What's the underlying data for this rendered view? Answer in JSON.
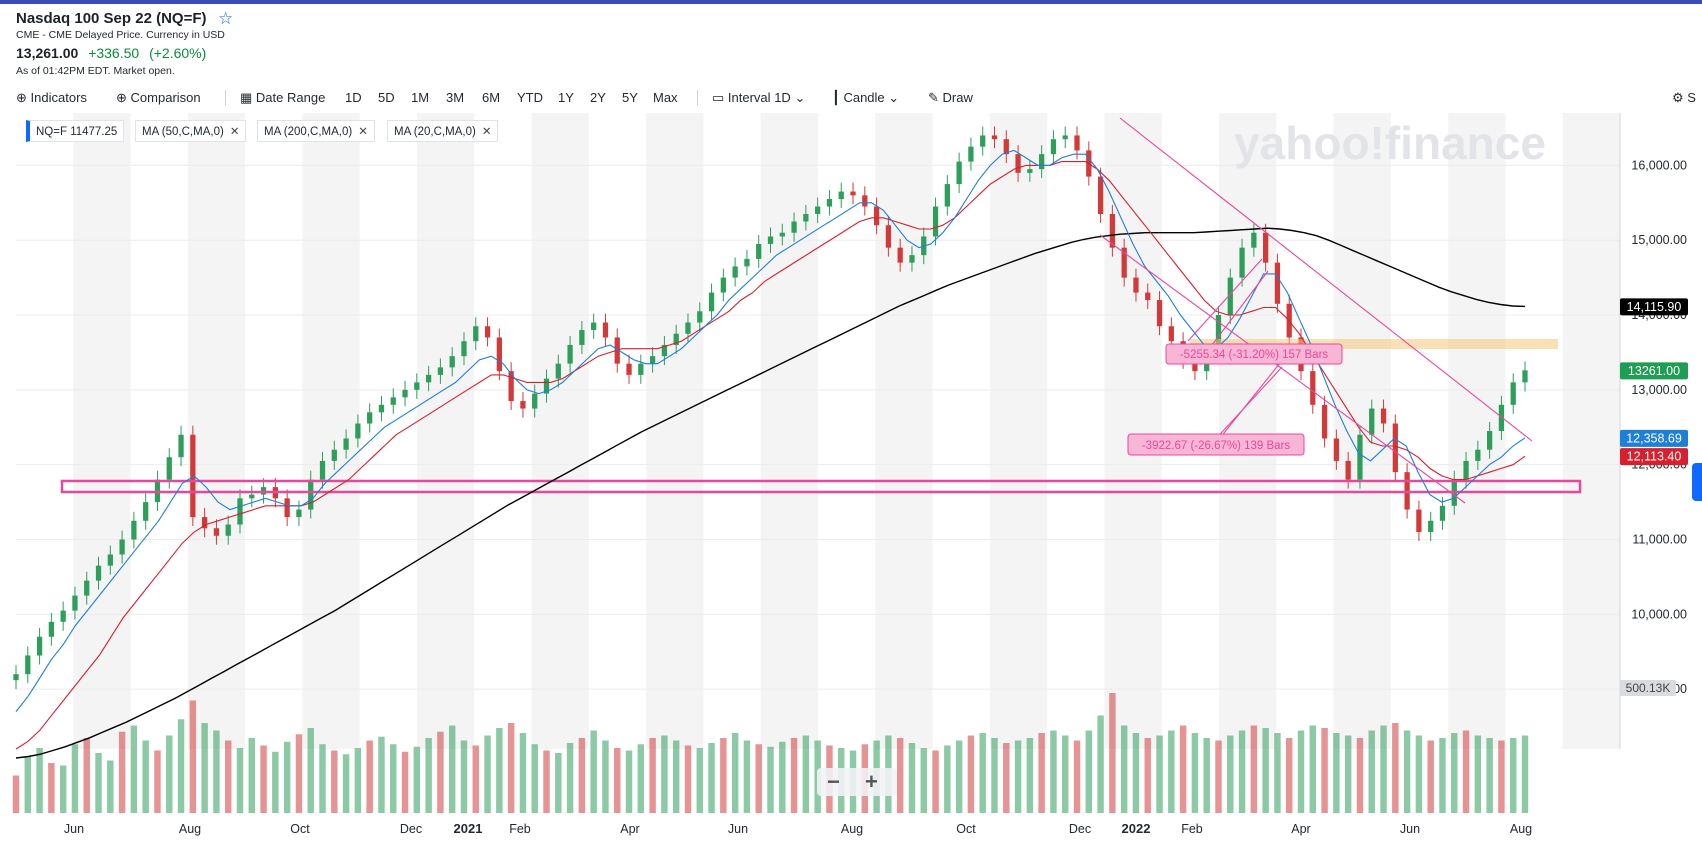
{
  "header": {
    "title": "Nasdaq 100 Sep 22 (NQ=F)",
    "subtitle": "CME - CME Delayed Price. Currency in USD",
    "price": "13,261.00",
    "change": "+336.50",
    "change_pct": "(+2.60%)",
    "as_of": "As of 01:42PM EDT. Market open."
  },
  "toolbar": {
    "indicators": "Indicators",
    "comparison": "Comparison",
    "date_range": "Date Range",
    "ranges": [
      "1D",
      "5D",
      "1M",
      "3M",
      "6M",
      "YTD",
      "1Y",
      "2Y",
      "5Y",
      "Max"
    ],
    "interval_label": "Interval",
    "interval_value": "1D",
    "chart_type": "Candle",
    "draw": "Draw",
    "settings": "S"
  },
  "legend_pills": [
    {
      "label": "NQ=F",
      "value": "11477.25"
    },
    {
      "label": "MA (50,C,MA,0)"
    },
    {
      "label": "MA (200,C,MA,0)"
    },
    {
      "label": "MA (20,C,MA,0)"
    }
  ],
  "watermark": "yahoo!finance",
  "zoom": {
    "minus": "−",
    "plus": "+"
  },
  "chart_data": {
    "type": "line",
    "series": [
      {
        "values": [
          9200,
          9450,
          9700,
          9900,
          10050,
          10250,
          10450,
          10650,
          10800,
          11000,
          11250,
          11500,
          11800,
          12100,
          12400,
          11300,
          11150,
          11050,
          11200,
          11550,
          11600,
          11700,
          11550,
          11300,
          11400,
          11800,
          12050,
          12200,
          12350,
          12550,
          12700,
          12800,
          12900,
          13000,
          13100,
          13200,
          13300,
          13450,
          13650,
          13850,
          13700,
          13250,
          12850,
          12750,
          12950,
          13150,
          13350,
          13600,
          13800,
          13900,
          13700,
          13350,
          13200,
          13350,
          13450,
          13600,
          13750,
          13900,
          14050,
          14300,
          14500,
          14650,
          14750,
          14950,
          15050,
          15100,
          15250,
          15350,
          15450,
          15550,
          15650,
          15600,
          15450,
          15200,
          14900,
          14700,
          14800,
          15050,
          15450,
          15750,
          16050,
          16250,
          16400,
          16350,
          16150,
          15900,
          15950,
          16150,
          16350,
          16400,
          16200,
          15850,
          15350,
          14900,
          14500,
          14300,
          14200,
          13850,
          13650,
          13400,
          13250,
          13500,
          14000,
          14500,
          14900,
          15100,
          14700,
          14150,
          13700,
          13250,
          12800,
          12350,
          12050,
          11800,
          12400,
          12750,
          12550,
          11900,
          11400,
          11100,
          11250,
          11450,
          11800,
          12050,
          12200,
          12450,
          12800,
          13100,
          13261
        ]
      },
      {
        "name": "MA (20,C,MA,0)",
        "values": [
          8700,
          8900,
          9150,
          9400,
          9600,
          9850,
          10050,
          10250,
          10450,
          10650,
          10850,
          11050,
          11250,
          11500,
          11750,
          11850,
          11700,
          11500,
          11400,
          11450,
          11500,
          11550,
          11500,
          11450,
          11450,
          11550,
          11750,
          11900,
          12050,
          12200,
          12350,
          12500,
          12600,
          12700,
          12800,
          12900,
          13000,
          13100,
          13250,
          13400,
          13450,
          13350,
          13150,
          13000,
          12950,
          13000,
          13100,
          13250,
          13400,
          13550,
          13600,
          13500,
          13400,
          13350,
          13350,
          13450,
          13550,
          13700,
          13850,
          14000,
          14200,
          14350,
          14500,
          14650,
          14800,
          14900,
          15000,
          15100,
          15200,
          15300,
          15400,
          15500,
          15500,
          15400,
          15200,
          15000,
          14900,
          14950,
          15100,
          15300,
          15550,
          15800,
          16000,
          16150,
          16200,
          16100,
          16000,
          16000,
          16100,
          16150,
          16150,
          15950,
          15650,
          15300,
          14950,
          14650,
          14450,
          14250,
          14000,
          13800,
          13600,
          13550,
          13700,
          13950,
          14250,
          14550,
          14550,
          14300,
          13950,
          13600,
          13200,
          12800,
          12450,
          12150,
          12050,
          12200,
          12350,
          12250,
          11900,
          11600,
          11500,
          11550,
          11700,
          11850,
          12000,
          12100,
          12250,
          12358.69
        ]
      },
      {
        "name": "MA (50,C,MA,0)",
        "values": [
          8200,
          8300,
          8450,
          8650,
          8850,
          9050,
          9250,
          9450,
          9700,
          9950,
          10150,
          10350,
          10550,
          10750,
          10950,
          11100,
          11200,
          11250,
          11300,
          11350,
          11400,
          11450,
          11450,
          11450,
          11450,
          11500,
          11600,
          11700,
          11800,
          11950,
          12100,
          12250,
          12400,
          12500,
          12600,
          12700,
          12800,
          12900,
          13000,
          13100,
          13200,
          13200,
          13150,
          13100,
          13100,
          13100,
          13150,
          13250,
          13350,
          13450,
          13500,
          13550,
          13550,
          13550,
          13550,
          13600,
          13650,
          13750,
          13850,
          13950,
          14050,
          14200,
          14300,
          14450,
          14550,
          14650,
          14750,
          14850,
          14950,
          15050,
          15150,
          15250,
          15300,
          15300,
          15250,
          15200,
          15150,
          15150,
          15200,
          15300,
          15450,
          15600,
          15750,
          15850,
          15950,
          16000,
          16000,
          16000,
          16050,
          16050,
          16050,
          15950,
          15800,
          15600,
          15400,
          15200,
          15000,
          14800,
          14600,
          14400,
          14200,
          14050,
          14000,
          14000,
          14050,
          14100,
          14100,
          13950,
          13750,
          13500,
          13250,
          13000,
          12750,
          12500,
          12300,
          12250,
          12250,
          12200,
          12100,
          11950,
          11850,
          11800,
          11800,
          11850,
          11900,
          11950,
          12000,
          12113.4
        ]
      },
      {
        "name": "MA (200,C,MA,0)",
        "values": [
          8080,
          8100,
          8130,
          8180,
          8230,
          8290,
          8350,
          8420,
          8490,
          8560,
          8640,
          8720,
          8800,
          8880,
          8970,
          9060,
          9150,
          9240,
          9330,
          9420,
          9510,
          9600,
          9690,
          9780,
          9870,
          9960,
          10050,
          10150,
          10250,
          10350,
          10450,
          10550,
          10650,
          10750,
          10850,
          10950,
          11050,
          11150,
          11250,
          11350,
          11450,
          11540,
          11630,
          11720,
          11810,
          11900,
          11990,
          12080,
          12170,
          12260,
          12350,
          12440,
          12520,
          12600,
          12680,
          12760,
          12840,
          12920,
          13000,
          13080,
          13160,
          13240,
          13320,
          13400,
          13480,
          13560,
          13640,
          13720,
          13800,
          13880,
          13960,
          14040,
          14120,
          14190,
          14260,
          14330,
          14400,
          14460,
          14520,
          14580,
          14640,
          14700,
          14760,
          14820,
          14870,
          14920,
          14970,
          15010,
          15040,
          15060,
          15080,
          15090,
          15100,
          15100,
          15100,
          15100,
          15100,
          15110,
          15120,
          15130,
          15140,
          15150,
          15160,
          15150,
          15130,
          15100,
          15060,
          15000,
          14930,
          14860,
          14790,
          14720,
          14650,
          14580,
          14510,
          14440,
          14370,
          14310,
          14260,
          14210,
          14170,
          14140,
          14120,
          14115.9
        ]
      }
    ],
    "volume_values": [
      30,
      45,
      52,
      40,
      38,
      55,
      60,
      48,
      42,
      65,
      70,
      58,
      50,
      62,
      75,
      90,
      72,
      66,
      58,
      52,
      60,
      54,
      49,
      57,
      63,
      68,
      55,
      50,
      47,
      52,
      58,
      61,
      55,
      49,
      53,
      60,
      65,
      70,
      58,
      54,
      62,
      68,
      72,
      64,
      55,
      50,
      48,
      56,
      60,
      66,
      58,
      52,
      50,
      55,
      60,
      62,
      58,
      54,
      52,
      56,
      60,
      64,
      58,
      55,
      53,
      57,
      60,
      62,
      58,
      54,
      52,
      50,
      55,
      58,
      62,
      60,
      56,
      52,
      50,
      54,
      58,
      62,
      64,
      60,
      56,
      58,
      60,
      64,
      66,
      62,
      58,
      66,
      78,
      96,
      70,
      64,
      60,
      62,
      66,
      70,
      64,
      60,
      58,
      62,
      66,
      70,
      68,
      64,
      60,
      66,
      70,
      68,
      64,
      62,
      60,
      66,
      70,
      72,
      66,
      62,
      58,
      60,
      64,
      66,
      62,
      60,
      58,
      60,
      62
    ],
    "x_tick_labels": [
      "Jun",
      "Aug",
      "Oct",
      "Dec",
      "2021",
      "Feb",
      "Apr",
      "Jun",
      "Aug",
      "Oct",
      "Dec",
      "2022",
      "Feb",
      "Apr",
      "Jun",
      "Aug"
    ],
    "y_tick_labels": [
      "16,000.00",
      "15,000.00",
      "14,000.00",
      "13,000.00",
      "12,000.00",
      "11,000.00",
      "10,000.00",
      "9,000.00"
    ],
    "ylim": [
      8200,
      16700
    ],
    "price_labels": [
      {
        "text": "14,115.90",
        "value": 14115.9,
        "color": "#000000"
      },
      {
        "text": "13261.00",
        "value": 13261,
        "color": "#1e9e52"
      },
      {
        "text": "12,358.69",
        "value": 12358.69,
        "color": "#1e7fd8"
      },
      {
        "text": "12,113.40",
        "value": 12113.4,
        "color": "#d6202e"
      }
    ],
    "volume_label": "500.13K",
    "annotations": [
      "-5255.34 (-31.20%) 157 Bars",
      "-3922.67 (-26.67%) 139 Bars"
    ],
    "colors": {
      "up": "#2e9e5b",
      "down": "#d23a3a",
      "ma20": "#1e7fd8",
      "ma50": "#d6202e",
      "ma200": "#000000",
      "drawing": "#e8489c",
      "resistance_zone": "#f5c77a"
    }
  }
}
